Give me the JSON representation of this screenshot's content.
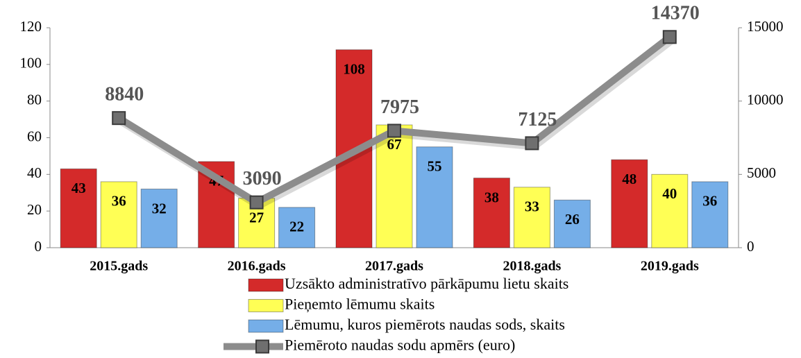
{
  "chart_data": {
    "type": "bar",
    "categories": [
      "2015.gads",
      "2016.gads",
      "2017.gads",
      "2018.gads",
      "2019.gads"
    ],
    "series": [
      {
        "name": "Uzsākto administratīvo pārkāpumu lietu skaits",
        "color": "#d42a2a",
        "values": [
          43,
          47,
          108,
          38,
          48
        ]
      },
      {
        "name": "Pieņemto lēmumu skaits",
        "color": "#ffff55",
        "values": [
          36,
          27,
          67,
          33,
          40
        ]
      },
      {
        "name": "Lēmumu, kuros piemērots naudas sods, skaits",
        "color": "#75aee8",
        "values": [
          32,
          22,
          55,
          26,
          36
        ]
      },
      {
        "name": "Piemēroto naudas sodu apmērs (euro)",
        "color": "#8c8c8c",
        "type": "line",
        "axis": "y2",
        "values": [
          8840,
          3090,
          7975,
          7125,
          14370
        ]
      }
    ],
    "ylim": [
      0,
      120
    ],
    "yticks": [
      0,
      20,
      40,
      60,
      80,
      100,
      120
    ],
    "y2lim": [
      0,
      15000
    ],
    "y2ticks": [
      0,
      5000,
      10000,
      15000
    ],
    "grid": false,
    "legend": "bottom"
  }
}
